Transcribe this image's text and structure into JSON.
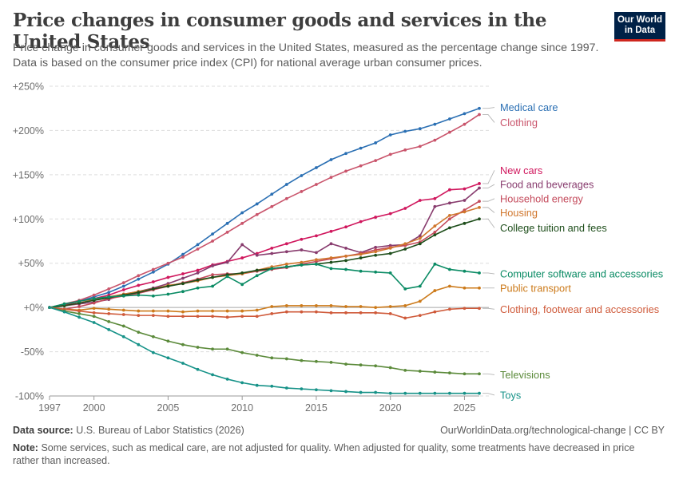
{
  "title": "Price changes in consumer goods and services in the United States",
  "subtitle": "Price change in consumer goods and services in the United States, measured as the percentage change since 1997. Data is based on the consumer price index (CPI) for national average urban consumer prices.",
  "logo": {
    "line1": "Our World",
    "line2": "in Data",
    "bg_color": "#002147",
    "accent_color": "#ce261e"
  },
  "footer": {
    "source_label": "Data source:",
    "source_text": "U.S. Bureau of Labor Statistics (2026)",
    "credit": "OurWorldinData.org/technological-change | CC BY",
    "note_label": "Note:",
    "note_text": "Some services, such as medical care, are not adjusted for quality. When adjusted for quality, some treatments have decreased in price rather than increased."
  },
  "chart_data": {
    "type": "line",
    "x_ticks": [
      1997,
      2000,
      2005,
      2010,
      2015,
      2020,
      2025
    ],
    "y_ticks": [
      -100,
      -50,
      0,
      50,
      100,
      150,
      200,
      250
    ],
    "y_tick_labels": [
      "-100%",
      "-50%",
      "+0%",
      "+50%",
      "+100%",
      "+150%",
      "+200%",
      "+250%"
    ],
    "xlim": [
      1997,
      2026
    ],
    "ylim": [
      -100,
      250
    ],
    "grid": "horizontal dashed",
    "legend": "labels at right end of lines",
    "x": [
      1997,
      1998,
      1999,
      2000,
      2001,
      2002,
      2003,
      2004,
      2005,
      2006,
      2007,
      2008,
      2009,
      2010,
      2011,
      2012,
      2013,
      2014,
      2015,
      2016,
      2017,
      2018,
      2019,
      2020,
      2021,
      2022,
      2023,
      2024,
      2025,
      2026
    ],
    "series": [
      {
        "name": "Medical care",
        "color": "#2a6fb3",
        "values": [
          0,
          3,
          7,
          12,
          17,
          24,
          32,
          40,
          49,
          60,
          71,
          83,
          95,
          107,
          117,
          128,
          139,
          149,
          158,
          167,
          174,
          180,
          186,
          195,
          199,
          202,
          207,
          213,
          219,
          225
        ]
      },
      {
        "name": "Clothing",
        "color": "#c9546b",
        "values": [
          0,
          4,
          8,
          14,
          21,
          28,
          36,
          43,
          50,
          57,
          66,
          75,
          85,
          95,
          105,
          114,
          123,
          131,
          139,
          147,
          154,
          160,
          166,
          173,
          178,
          182,
          189,
          198,
          207,
          218
        ]
      },
      {
        "name": "New cars",
        "color": "#d0175d",
        "values": [
          0,
          3,
          7,
          10,
          14,
          20,
          25,
          29,
          34,
          38,
          42,
          48,
          52,
          56,
          61,
          67,
          72,
          77,
          81,
          86,
          91,
          97,
          102,
          106,
          112,
          121,
          123,
          133,
          134,
          140
        ]
      },
      {
        "name": "Food and beverages",
        "color": "#883c6e",
        "values": [
          0,
          2,
          4,
          6,
          9,
          15,
          18,
          22,
          27,
          33,
          39,
          47,
          51,
          71,
          59,
          61,
          63,
          65,
          62,
          72,
          67,
          62,
          68,
          70,
          71,
          81,
          114,
          118,
          121,
          135
        ]
      },
      {
        "name": "Household energy",
        "color": "#c44a5b",
        "values": [
          0,
          -2,
          1,
          5,
          10,
          13,
          16,
          20,
          24,
          28,
          32,
          37,
          38,
          38,
          41,
          43,
          45,
          49,
          52,
          55,
          58,
          61,
          65,
          68,
          70,
          74,
          85,
          100,
          110,
          120
        ]
      },
      {
        "name": "Housing",
        "color": "#d0762c",
        "values": [
          0,
          2,
          5,
          9,
          12,
          15,
          18,
          21,
          25,
          27,
          30,
          34,
          36,
          38,
          42,
          46,
          49,
          51,
          54,
          56,
          58,
          60,
          63,
          67,
          72,
          78,
          92,
          104,
          108,
          113
        ]
      },
      {
        "name": "College tuition and fees",
        "color": "#1d4d1a",
        "values": [
          0,
          2,
          5,
          8,
          11,
          14,
          17,
          21,
          24,
          27,
          31,
          34,
          37,
          39,
          42,
          44,
          46,
          48,
          49,
          51,
          53,
          56,
          59,
          61,
          66,
          72,
          82,
          90,
          95,
          100
        ]
      },
      {
        "name": "Computer software and accessories",
        "color": "#0a8b64",
        "values": [
          0,
          4,
          7,
          10,
          12,
          13,
          14,
          13,
          15,
          18,
          22,
          24,
          35,
          26,
          36,
          44,
          46,
          48,
          49,
          44,
          43,
          41,
          40,
          39,
          21,
          24,
          49,
          43,
          41,
          39
        ]
      },
      {
        "name": "Public transport",
        "color": "#cc7a1a",
        "values": [
          0,
          -2,
          -3,
          -1,
          -2,
          -3,
          -4,
          -4,
          -4,
          -5,
          -4,
          -4,
          -4,
          -4,
          -3,
          1,
          2,
          2,
          2,
          2,
          1,
          1,
          0,
          1,
          2,
          7,
          19,
          24,
          22,
          22
        ]
      },
      {
        "name": "Clothing, footwear and accessories",
        "color": "#cf5a3a",
        "values": [
          0,
          -2,
          -4,
          -6,
          -7,
          -8,
          -9,
          -9,
          -10,
          -10,
          -10,
          -10,
          -11,
          -10,
          -10,
          -7,
          -5,
          -5,
          -5,
          -6,
          -6,
          -6,
          -6,
          -7,
          -12,
          -9,
          -5,
          -2,
          -1,
          -1
        ]
      },
      {
        "name": "Televisions",
        "color": "#5b8a3a",
        "values": [
          0,
          -4,
          -7,
          -10,
          -16,
          -21,
          -28,
          -33,
          -38,
          -42,
          -45,
          -47,
          -47,
          -51,
          -54,
          -57,
          -58,
          -60,
          -61,
          -62,
          -64,
          -65,
          -66,
          -68,
          -71,
          -72,
          -73,
          -74,
          -75,
          -75
        ]
      },
      {
        "name": "Toys",
        "color": "#169288",
        "values": [
          0,
          -5,
          -11,
          -17,
          -25,
          -33,
          -42,
          -51,
          -57,
          -63,
          -70,
          -76,
          -81,
          -85,
          -88,
          -89,
          -91,
          -92,
          -93,
          -94,
          -95,
          -96,
          -96,
          -97,
          -97,
          -97,
          -97,
          -97,
          -97,
          -97
        ]
      }
    ],
    "label_values": [
      226,
      209,
      155,
      139,
      123,
      107,
      90,
      38,
      22,
      -2,
      -76,
      -99
    ]
  }
}
